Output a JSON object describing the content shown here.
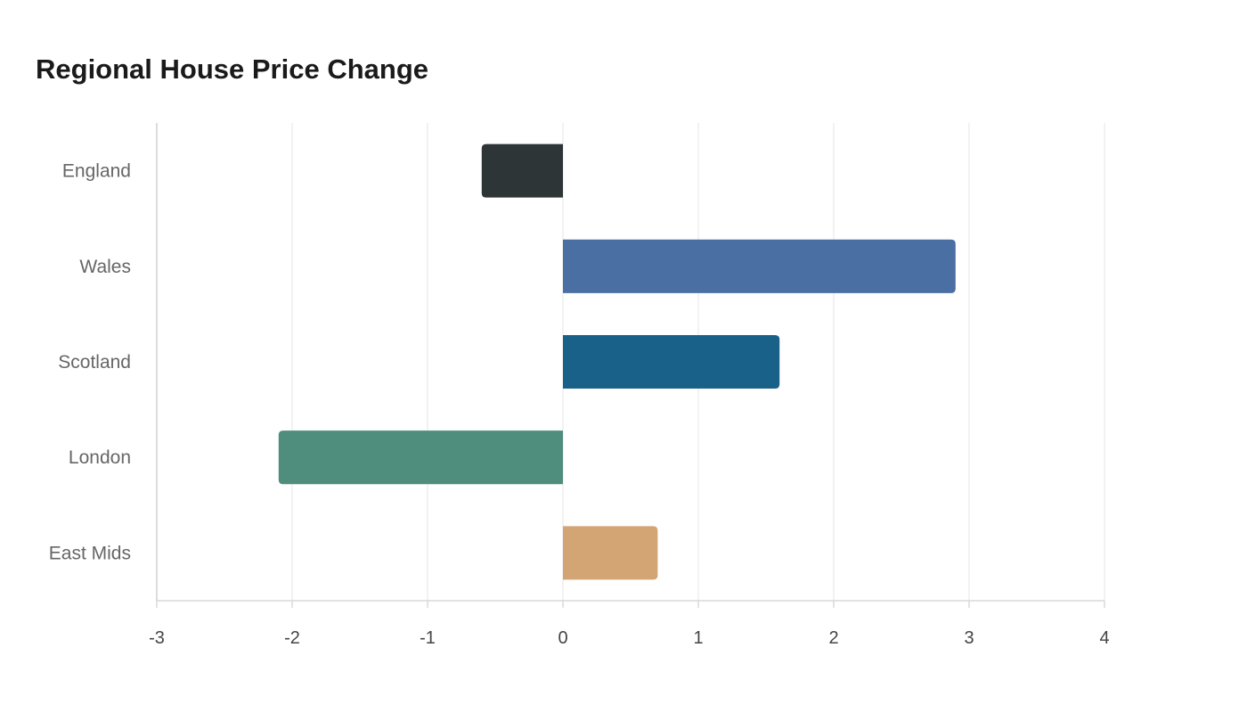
{
  "chart_data": {
    "type": "bar",
    "orientation": "horizontal",
    "title": "Regional House Price Change",
    "xlabel": "",
    "ylabel": "",
    "categories": [
      "England",
      "Wales",
      "Scotland",
      "London",
      "East Mids"
    ],
    "values": [
      -0.6,
      2.9,
      1.6,
      -2.1,
      0.7
    ],
    "colors": [
      "#2e3537",
      "#4a6fa3",
      "#1a6189",
      "#4f8d7c",
      "#d4a574"
    ],
    "xlim": [
      -3,
      4
    ],
    "xticks": [
      -3,
      -2,
      -1,
      0,
      1,
      2,
      3,
      4
    ],
    "grid": true,
    "legend": "none"
  }
}
